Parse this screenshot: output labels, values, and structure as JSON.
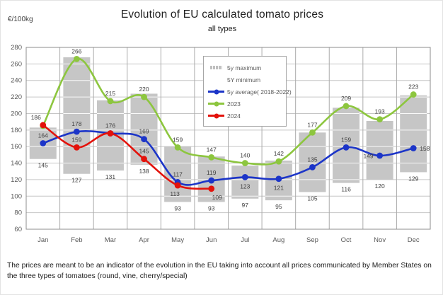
{
  "header": {
    "y_unit": "€/100kg",
    "title": "Evolution of EU calculated tomato prices",
    "subtitle": "all types"
  },
  "legend": {
    "items": [
      {
        "label": "5y maximum",
        "swatch": "bar",
        "color": "#c6c6c6"
      },
      {
        "label": "5Y minimum",
        "swatch": "none",
        "color": ""
      },
      {
        "label": "5y average( 2018-2022)",
        "swatch": "line-dot",
        "color": "#1c35c8"
      },
      {
        "label": "2023",
        "swatch": "line-dot",
        "color": "#8dc63f"
      },
      {
        "label": "2024",
        "swatch": "line-dot",
        "color": "#e3120b"
      }
    ]
  },
  "chart_data": {
    "type": "combo (range bars + smooth lines)",
    "title": "Evolution of EU calculated tomato prices",
    "subtitle": "all types",
    "unit": "€/100kg",
    "categories": [
      "Jan",
      "Feb",
      "Mar",
      "Apr",
      "May",
      "Jun",
      "Jul",
      "Aug",
      "Sep",
      "Oct",
      "Nov",
      "Dec"
    ],
    "y_axis": {
      "min": 60,
      "max": 280,
      "step": 20,
      "grid": true
    },
    "legend_position": "inside-top-center",
    "range_series": {
      "name_max": "5y maximum",
      "name_min": "5Y minimum",
      "color": "#c6c6c6",
      "min_values": [
        145,
        127,
        131,
        138,
        93,
        93,
        97,
        95,
        105,
        116,
        120,
        129
      ],
      "max_values_estimated": [
        183,
        268,
        216,
        224,
        160,
        148,
        137,
        143,
        177,
        207,
        191,
        222
      ],
      "note": "max values are not labelled in the chart; estimated from gridlines. Min values are labelled below each bar."
    },
    "line_series": [
      {
        "name": "5y average( 2018-2022)",
        "color": "#1c35c8",
        "values": [
          164,
          178,
          176,
          169,
          117,
          119,
          123,
          121,
          135,
          159,
          149,
          158
        ],
        "hidden_label_indices": [
          2
        ],
        "note": "Mar label hidden, point coincides with 2024 value 176"
      },
      {
        "name": "2023",
        "color": "#8dc63f",
        "values": [
          185,
          266,
          215,
          220,
          159,
          147,
          140,
          142,
          177,
          209,
          193,
          223
        ],
        "hidden_label_indices": [
          0
        ],
        "note": "Jan point hidden behind 2024 Jan point; value estimated"
      },
      {
        "name": "2024",
        "color": "#e3120b",
        "values": [
          186,
          159,
          176,
          145,
          113,
          109
        ],
        "hidden_label_indices": [],
        "note": "series ends in June"
      }
    ]
  },
  "footer": {
    "text": "The prices are meant to be an indicator of the evolution in the EU taking into account all prices communicated by Member States on the three types of tomatoes (round, vine, cherry/special)"
  }
}
